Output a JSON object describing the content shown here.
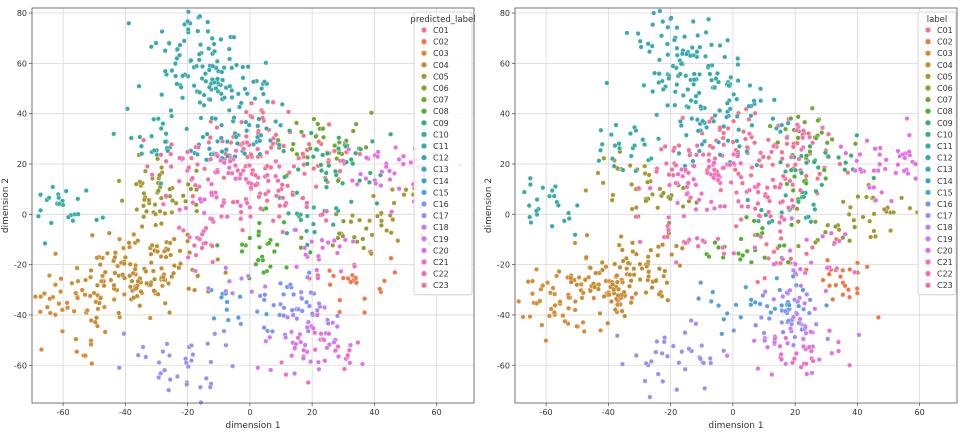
{
  "chart_data": [
    {
      "type": "scatter",
      "panel": "left",
      "xlabel": "dimension 1",
      "ylabel": "dimension 2",
      "xlim": [
        -70,
        72
      ],
      "ylim": [
        -75,
        82
      ],
      "xticks": [
        -60,
        -40,
        -20,
        0,
        20,
        40,
        60
      ],
      "yticks": [
        -60,
        -40,
        -20,
        0,
        20,
        40,
        60,
        80
      ],
      "grid": true,
      "legend_title": "predicted_label",
      "legend_position": "top-right",
      "series": [
        {
          "name": "C01",
          "color": "#f77189",
          "clusters": [
            [
              22,
              20,
              30
            ],
            [
              0,
              30,
              60
            ]
          ]
        },
        {
          "name": "C02",
          "color": "#f17545",
          "clusters": [
            [
              35,
              -27,
              24
            ]
          ]
        },
        {
          "name": "C03",
          "color": "#d58c32",
          "clusters": [
            [
              -58,
              -36,
              45
            ],
            [
              -45,
              -28,
              40
            ]
          ]
        },
        {
          "name": "C04",
          "color": "#c08e31",
          "clusters": [
            [
              -38,
              -26,
              60
            ],
            [
              -25,
              -20,
              40
            ]
          ]
        },
        {
          "name": "C05",
          "color": "#a99831",
          "clusters": [
            [
              -30,
              10,
              35
            ],
            [
              45,
              0,
              25
            ]
          ]
        },
        {
          "name": "C06",
          "color": "#8f9c31",
          "clusters": [
            [
              -20,
              8,
              15
            ],
            [
              30,
              -8,
              15
            ]
          ]
        },
        {
          "name": "C07",
          "color": "#6da931",
          "clusters": [
            [
              25,
              30,
              30
            ]
          ]
        },
        {
          "name": "C08",
          "color": "#50b131",
          "clusters": [
            [
              5,
              -12,
              30
            ]
          ]
        },
        {
          "name": "C09",
          "color": "#33b07a",
          "clusters": [
            [
              28,
              20,
              40
            ]
          ]
        },
        {
          "name": "C10",
          "color": "#35ad97",
          "clusters": [
            [
              18,
              0,
              20
            ]
          ]
        },
        {
          "name": "C11",
          "color": "#36ada4",
          "clusters": [
            [
              -60,
              3,
              25
            ],
            [
              -32,
              30,
              25
            ]
          ]
        },
        {
          "name": "C12",
          "color": "#38aaac",
          "clusters": [
            [
              -14,
              55,
              50
            ],
            [
              -8,
              50,
              40
            ]
          ]
        },
        {
          "name": "C13",
          "color": "#3aa6b8",
          "clusters": [
            [
              0,
              35,
              35
            ],
            [
              -18,
              70,
              30
            ]
          ]
        },
        {
          "name": "C14",
          "color": "#3ba3c4",
          "clusters": [
            [
              -10,
              25,
              15
            ]
          ]
        },
        {
          "name": "C15",
          "color": "#52a0de",
          "clusters": [
            [
              -5,
              -35,
              12
            ]
          ]
        },
        {
          "name": "C16",
          "color": "#7a94f5",
          "clusters": [
            [
              12,
              -35,
              25
            ]
          ]
        },
        {
          "name": "C17",
          "color": "#a08cf4",
          "clusters": [
            [
              -18,
              -58,
              35
            ],
            [
              15,
              -40,
              20
            ]
          ]
        },
        {
          "name": "C18",
          "color": "#bb83f4",
          "clusters": [
            [
              -5,
              -30,
              10
            ]
          ]
        },
        {
          "name": "C19",
          "color": "#d178f3",
          "clusters": [
            [
              20,
              -50,
              35
            ]
          ]
        },
        {
          "name": "C20",
          "color": "#e56ee8",
          "clusters": [
            [
              48,
              18,
              40
            ],
            [
              25,
              -15,
              20
            ]
          ]
        },
        {
          "name": "C21",
          "color": "#f16ccd",
          "clusters": [
            [
              22,
              -55,
              25
            ],
            [
              -12,
              10,
              30
            ]
          ]
        },
        {
          "name": "C22",
          "color": "#f56eb6",
          "clusters": [
            [
              0,
              15,
              40
            ],
            [
              -15,
              -10,
              20
            ]
          ]
        },
        {
          "name": "C23",
          "color": "#f66ea0",
          "clusters": [
            [
              10,
              5,
              30
            ],
            [
              -20,
              20,
              20
            ]
          ]
        }
      ]
    },
    {
      "type": "scatter",
      "panel": "right",
      "xlabel": "dimension 1",
      "ylabel": "dimension 2",
      "xlim": [
        -70,
        72
      ],
      "ylim": [
        -75,
        82
      ],
      "xticks": [
        -60,
        -40,
        -20,
        0,
        20,
        40,
        60
      ],
      "yticks": [
        -60,
        -40,
        -20,
        0,
        20,
        40,
        60,
        80
      ],
      "grid": true,
      "legend_title": "label",
      "legend_position": "top-right",
      "series": [
        {
          "name": "C01",
          "color": "#f77189",
          "clusters": [
            [
              22,
              20,
              30
            ],
            [
              0,
              30,
              50
            ],
            [
              15,
              -20,
              15
            ]
          ]
        },
        {
          "name": "C02",
          "color": "#f17545",
          "clusters": [
            [
              35,
              -27,
              24
            ],
            [
              -40,
              -30,
              10
            ]
          ]
        },
        {
          "name": "C03",
          "color": "#d58c32",
          "clusters": [
            [
              -58,
              -36,
              45
            ],
            [
              -45,
              -28,
              35
            ]
          ]
        },
        {
          "name": "C04",
          "color": "#c08e31",
          "clusters": [
            [
              -38,
              -26,
              50
            ],
            [
              -25,
              -20,
              35
            ]
          ]
        },
        {
          "name": "C05",
          "color": "#a99831",
          "clusters": [
            [
              -30,
              10,
              30
            ],
            [
              45,
              0,
              25
            ]
          ]
        },
        {
          "name": "C06",
          "color": "#8f9c31",
          "clusters": [
            [
              -20,
              8,
              15
            ],
            [
              30,
              -8,
              15
            ]
          ]
        },
        {
          "name": "C07",
          "color": "#6da931",
          "clusters": [
            [
              25,
              30,
              25
            ]
          ]
        },
        {
          "name": "C08",
          "color": "#50b131",
          "clusters": [
            [
              5,
              -12,
              25
            ],
            [
              25,
              15,
              10
            ]
          ]
        },
        {
          "name": "C09",
          "color": "#33b07a",
          "clusters": [
            [
              28,
              20,
              25
            ]
          ]
        },
        {
          "name": "C10",
          "color": "#35ad97",
          "clusters": [
            [
              18,
              0,
              20
            ]
          ]
        },
        {
          "name": "C11",
          "color": "#36ada4",
          "clusters": [
            [
              -60,
              3,
              25
            ],
            [
              -32,
              30,
              25
            ]
          ]
        },
        {
          "name": "C12",
          "color": "#38aaac",
          "clusters": [
            [
              -14,
              55,
              50
            ],
            [
              -8,
              50,
              40
            ]
          ]
        },
        {
          "name": "C13",
          "color": "#3aa6b8",
          "clusters": [
            [
              0,
              35,
              30
            ],
            [
              -18,
              70,
              30
            ]
          ]
        },
        {
          "name": "C14",
          "color": "#3ba3c4",
          "clusters": [
            [
              -10,
              25,
              15
            ]
          ]
        },
        {
          "name": "C15",
          "color": "#52a0de",
          "clusters": [
            [
              12,
              -35,
              20
            ],
            [
              -5,
              -35,
              8
            ]
          ]
        },
        {
          "name": "C16",
          "color": "#7a94f5",
          "clusters": [
            [
              15,
              -40,
              20
            ]
          ]
        },
        {
          "name": "C17",
          "color": "#a08cf4",
          "clusters": [
            [
              -18,
              -58,
              35
            ],
            [
              18,
              -45,
              15
            ]
          ]
        },
        {
          "name": "C18",
          "color": "#bb83f4",
          "clusters": [
            [
              20,
              -30,
              15
            ]
          ]
        },
        {
          "name": "C19",
          "color": "#d178f3",
          "clusters": [
            [
              20,
              -50,
              25
            ]
          ]
        },
        {
          "name": "C20",
          "color": "#e56ee8",
          "clusters": [
            [
              48,
              18,
              40
            ],
            [
              25,
              -15,
              20
            ]
          ]
        },
        {
          "name": "C21",
          "color": "#f16ccd",
          "clusters": [
            [
              22,
              -55,
              25
            ],
            [
              -12,
              10,
              25
            ]
          ]
        },
        {
          "name": "C22",
          "color": "#f56eb6",
          "clusters": [
            [
              0,
              15,
              40
            ],
            [
              -15,
              -10,
              20
            ],
            [
              22,
              30,
              15
            ]
          ]
        },
        {
          "name": "C23",
          "color": "#f66ea0",
          "clusters": [
            [
              10,
              5,
              30
            ],
            [
              -20,
              20,
              20
            ]
          ]
        }
      ]
    }
  ]
}
